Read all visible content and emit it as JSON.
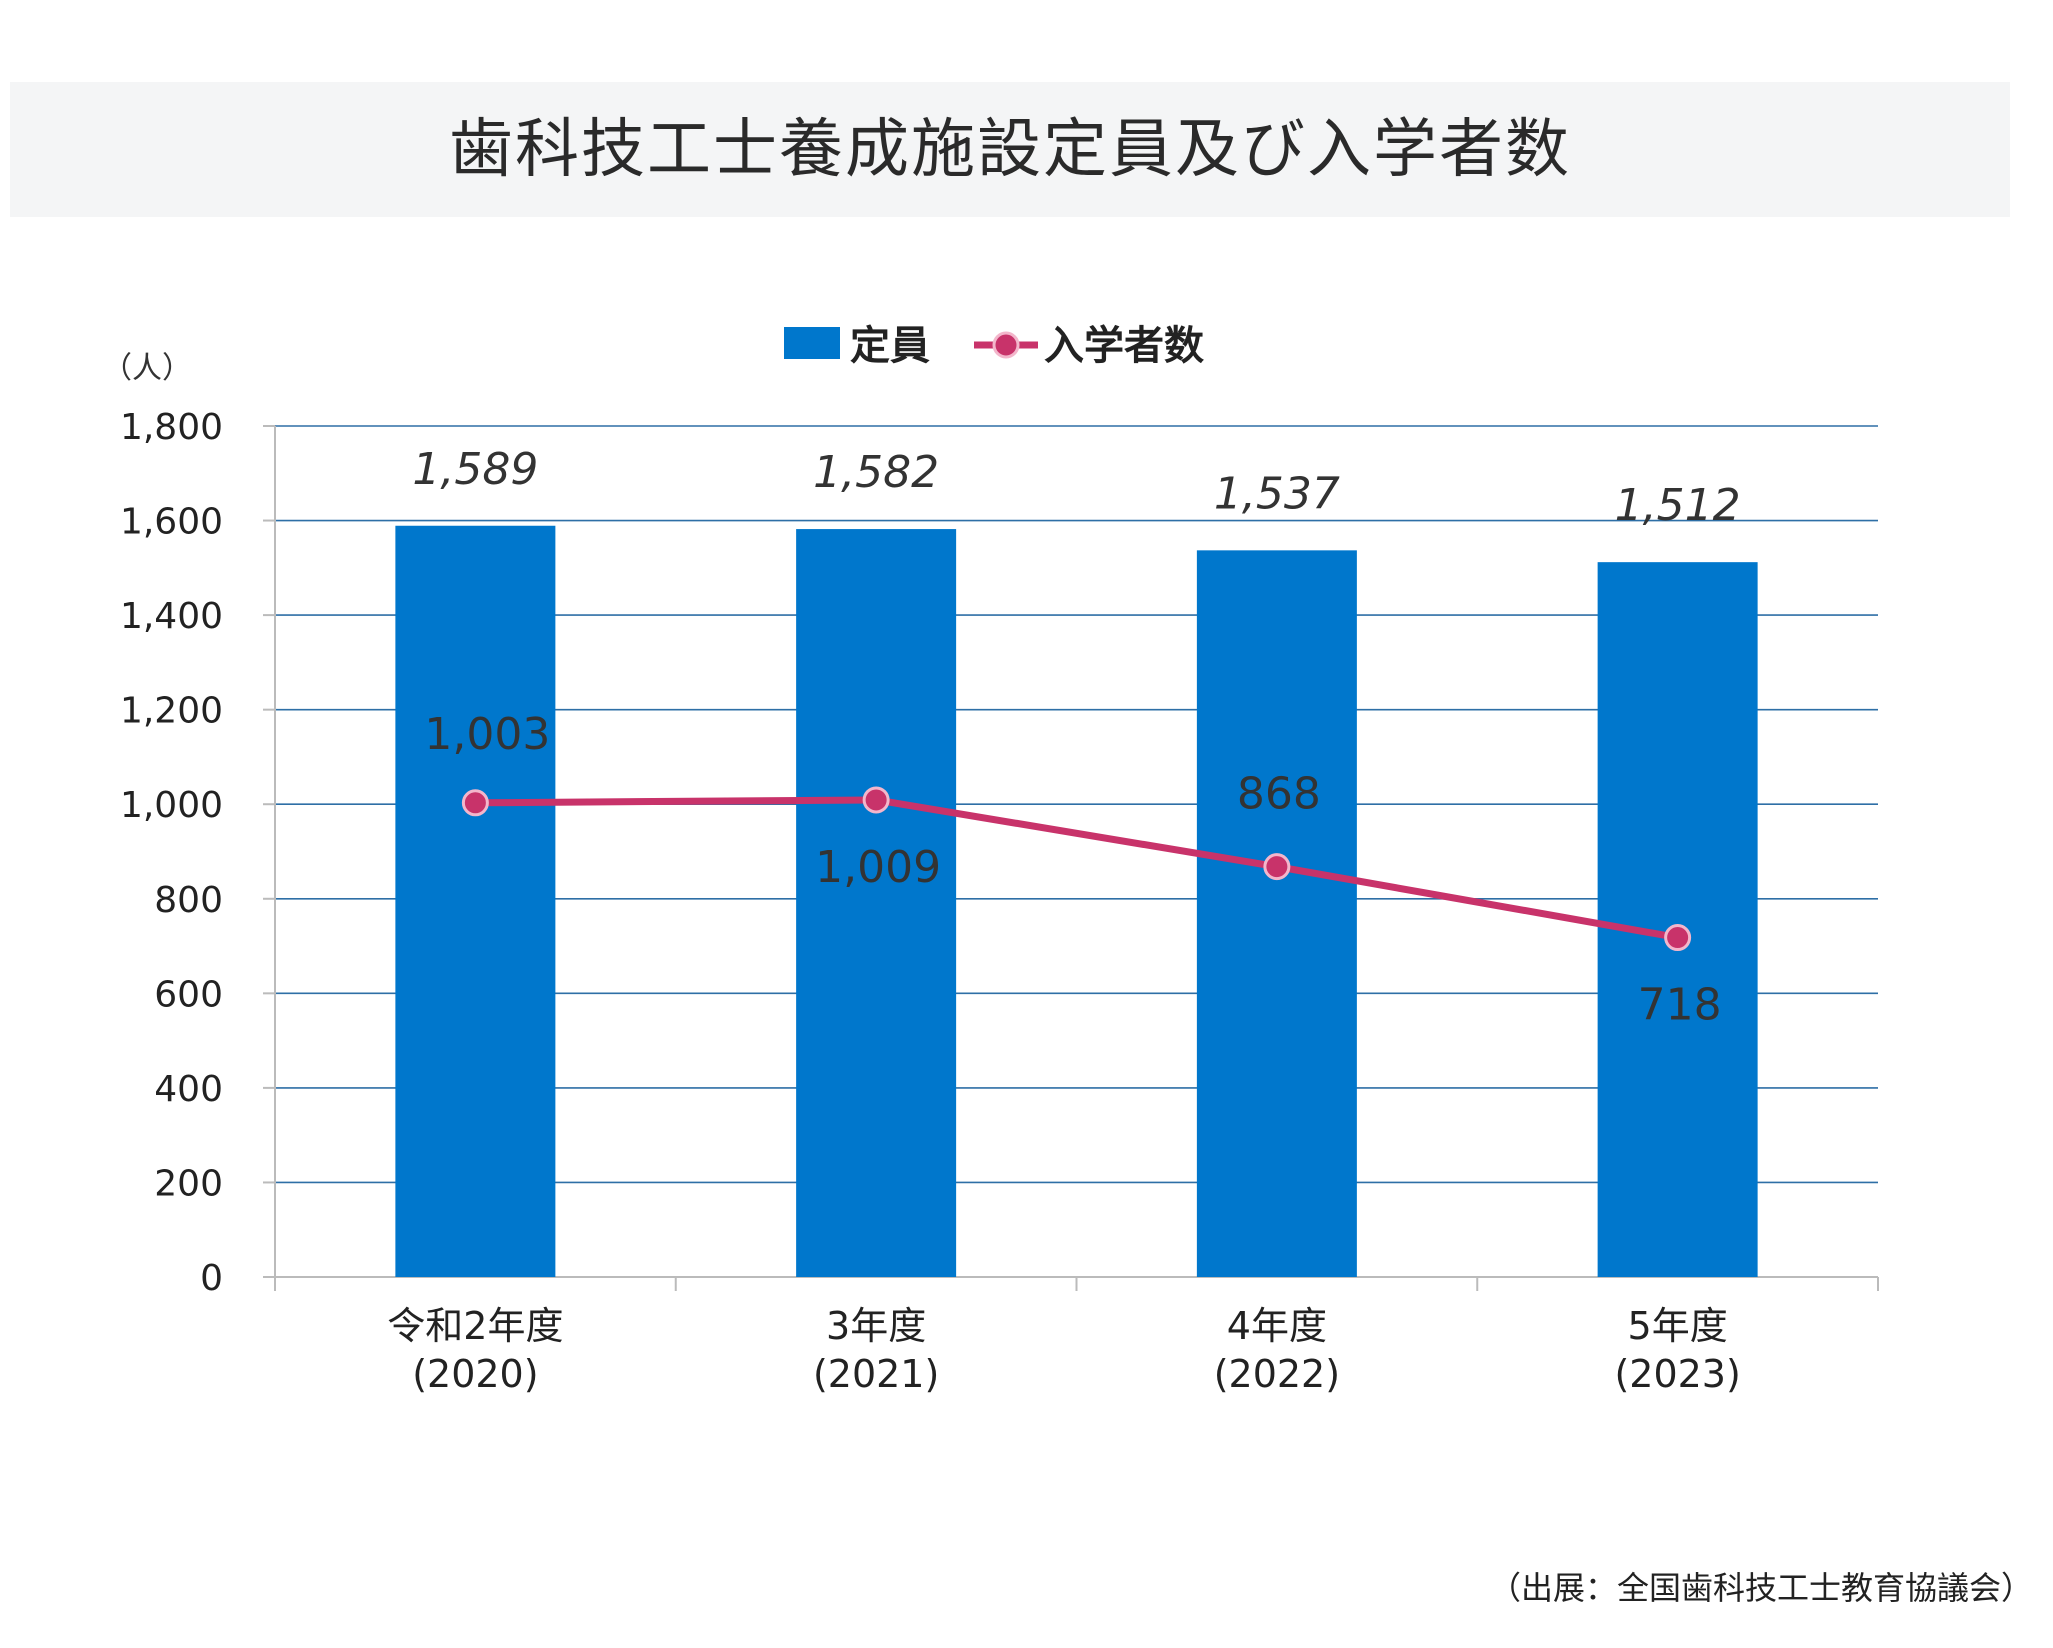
{
  "title": "歯科技工士養成施設定員及び入学者数",
  "source": "（出展：全国歯科技工士教育協議会）",
  "colors": {
    "bar": "#0077cc",
    "line": "#c8336a",
    "grid": "#2e6fa6",
    "axis": "#bbbbbb",
    "text": "#222222"
  },
  "chart_data": {
    "type": "bar",
    "unit_label": "（人）",
    "categories": [
      [
        "令和2年度",
        "(2020)"
      ],
      [
        "3年度",
        "(2021)"
      ],
      [
        "4年度",
        "(2022)"
      ],
      [
        "5年度",
        "(2023)"
      ]
    ],
    "ylim": [
      0,
      1800
    ],
    "yticks": [
      "0",
      "200",
      "400",
      "600",
      "800",
      "1,000",
      "1,200",
      "1,400",
      "1,600",
      "1,800"
    ],
    "ytick_values": [
      0,
      200,
      400,
      600,
      800,
      1000,
      1200,
      1400,
      1600,
      1800
    ],
    "legend_position": "top-center",
    "grid": true,
    "series": [
      {
        "name": "定員",
        "type": "bar",
        "values": [
          1589,
          1582,
          1537,
          1512
        ],
        "labels": [
          "1,589",
          "1,582",
          "1,537",
          "1,512"
        ]
      },
      {
        "name": "入学者数",
        "type": "line",
        "values": [
          1003,
          1009,
          868,
          718
        ],
        "labels": [
          "1,003",
          "1,009",
          "868",
          "718"
        ]
      }
    ]
  }
}
